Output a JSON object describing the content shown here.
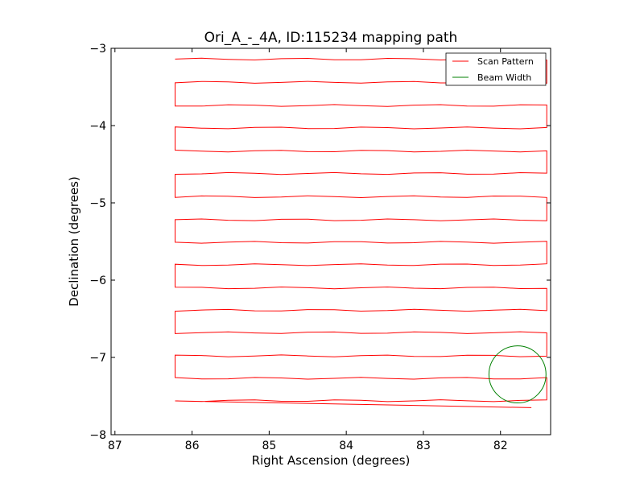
{
  "chart_data": {
    "type": "line",
    "title": "Ori_A_-_4A, ID:115234 mapping path",
    "xlabel": "Right Ascension (degrees)",
    "ylabel": "Declination (degrees)",
    "xlim": [
      87.05,
      81.35
    ],
    "ylim": [
      -8,
      -3
    ],
    "xticks": [
      87,
      86,
      85,
      84,
      83,
      82
    ],
    "yticks": [
      -3,
      -4,
      -5,
      -6,
      -7,
      -8
    ],
    "xtick_labels": [
      "87",
      "86",
      "85",
      "84",
      "83",
      "82"
    ],
    "ytick_labels": [
      "−3",
      "−4",
      "−5",
      "−6",
      "−7",
      "−8"
    ],
    "grid": false,
    "legend_position": "top-right",
    "series": [
      {
        "name": "Scan Pattern",
        "color": "#ff0000",
        "row_declinations": [
          -3.14,
          -3.44,
          -3.74,
          -4.03,
          -4.33,
          -4.62,
          -4.92,
          -5.22,
          -5.51,
          -5.8,
          -6.1,
          -6.39,
          -6.68,
          -6.98,
          -7.27,
          -7.56
        ],
        "turn_right_ra": 81.4,
        "turn_left_ra": 86.22,
        "end_ra": 81.6,
        "end_dec": -7.65
      },
      {
        "name": "Beam Width",
        "color": "#008000",
        "center_ra": 81.78,
        "center_dec": -7.22,
        "radius_deg": 0.37
      }
    ]
  }
}
